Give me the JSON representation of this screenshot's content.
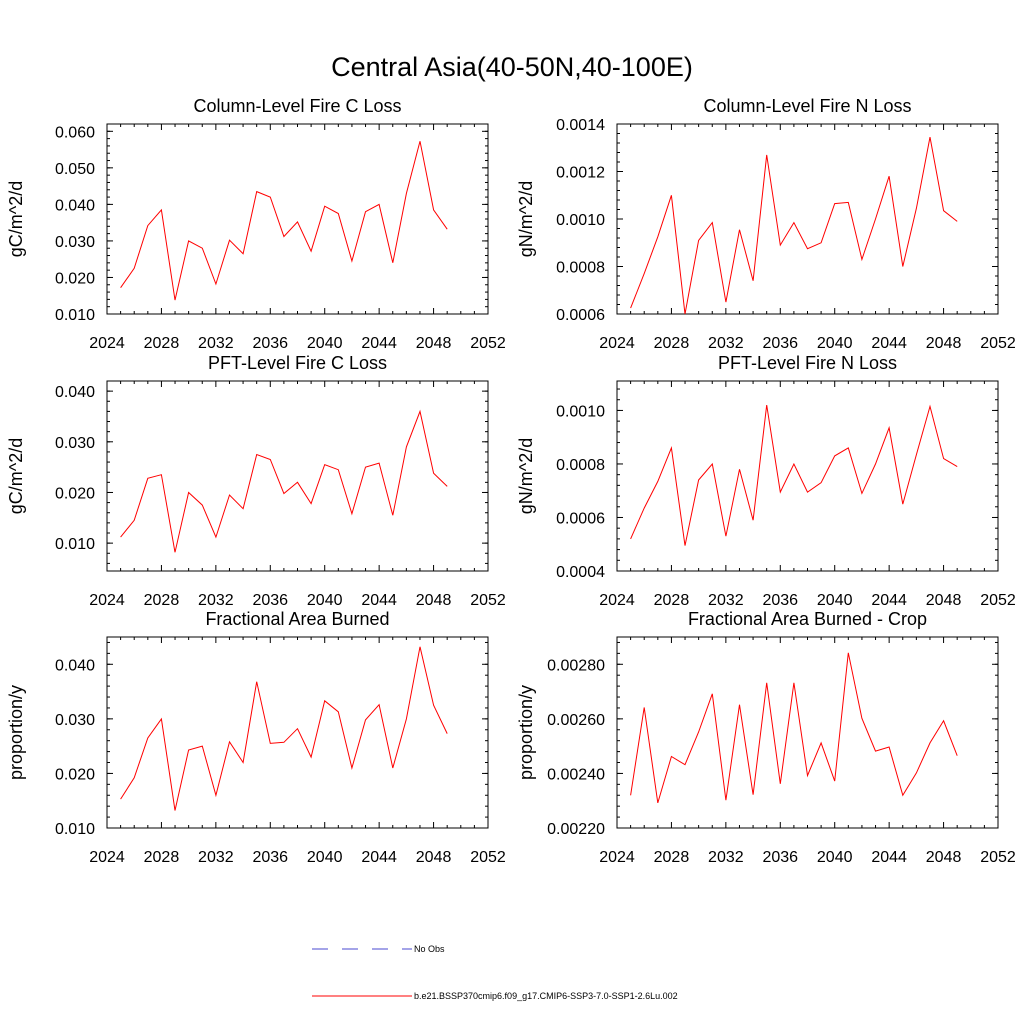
{
  "figure": {
    "title": "Central Asia(40-50N,40-100E)"
  },
  "legend": [
    {
      "label": "No Obs",
      "color": "#4a4ad0",
      "dash": true
    },
    {
      "label": "b.e21.BSSP370cmip6.f09_g17.CMIP6-SSP3-7.0-SSP1-2.6Lu.002",
      "color": "#ff0000",
      "dash": false
    }
  ],
  "chart_data": [
    {
      "type": "line",
      "title": "Column-Level Fire C Loss",
      "ylabel": "gC/m^2/d",
      "xlim": [
        2024,
        2052
      ],
      "ylim": [
        0.01,
        0.062
      ],
      "xticks": [
        2024,
        2028,
        2032,
        2036,
        2040,
        2044,
        2048,
        2052
      ],
      "yticks": [
        0.01,
        0.02,
        0.03,
        0.04,
        0.05,
        0.06
      ],
      "ytick_labels": [
        "0.010",
        "0.020",
        "0.030",
        "0.040",
        "0.050",
        "0.060"
      ],
      "series": [
        {
          "color": "#ff0000",
          "x": [
            2025,
            2026,
            2027,
            2028,
            2029,
            2030,
            2031,
            2032,
            2033,
            2034,
            2035,
            2036,
            2037,
            2038,
            2039,
            2040,
            2041,
            2042,
            2043,
            2044,
            2045,
            2046,
            2047,
            2048,
            2049
          ],
          "y": [
            0.0172,
            0.0225,
            0.0342,
            0.0385,
            0.0138,
            0.03,
            0.028,
            0.0182,
            0.0302,
            0.0265,
            0.0435,
            0.042,
            0.0312,
            0.0352,
            0.0272,
            0.0395,
            0.0375,
            0.0245,
            0.038,
            0.04,
            0.024,
            0.043,
            0.0573,
            0.0385,
            0.0332
          ]
        }
      ]
    },
    {
      "type": "line",
      "title": "Column-Level Fire N Loss",
      "ylabel": "gN/m^2/d",
      "xlim": [
        2024,
        2052
      ],
      "ylim": [
        0.0006,
        0.0014
      ],
      "xticks": [
        2024,
        2028,
        2032,
        2036,
        2040,
        2044,
        2048,
        2052
      ],
      "yticks": [
        0.0006,
        0.0008,
        0.001,
        0.0012,
        0.0014
      ],
      "ytick_labels": [
        "0.0006",
        "0.0008",
        "0.0010",
        "0.0012",
        "0.0014"
      ],
      "series": [
        {
          "color": "#ff0000",
          "x": [
            2025,
            2026,
            2027,
            2028,
            2029,
            2030,
            2031,
            2032,
            2033,
            2034,
            2035,
            2036,
            2037,
            2038,
            2039,
            2040,
            2041,
            2042,
            2043,
            2044,
            2045,
            2046,
            2047,
            2048,
            2049
          ],
          "y": [
            0.000625,
            0.00077,
            0.000925,
            0.0011,
            0.0006,
            0.00091,
            0.000985,
            0.00065,
            0.000955,
            0.00074,
            0.00127,
            0.00089,
            0.000985,
            0.000875,
            0.0009,
            0.001065,
            0.00107,
            0.00083,
            0.001,
            0.00118,
            0.0008,
            0.001045,
            0.001345,
            0.001035,
            0.00099
          ]
        }
      ]
    },
    {
      "type": "line",
      "title": "PFT-Level Fire C Loss",
      "ylabel": "gC/m^2/d",
      "xlim": [
        2024,
        2052
      ],
      "ylim": [
        0.0045,
        0.042
      ],
      "xticks": [
        2024,
        2028,
        2032,
        2036,
        2040,
        2044,
        2048,
        2052
      ],
      "yticks": [
        0.01,
        0.02,
        0.03,
        0.04
      ],
      "ytick_labels": [
        "0.010",
        "0.020",
        "0.030",
        "0.040"
      ],
      "series": [
        {
          "color": "#ff0000",
          "x": [
            2025,
            2026,
            2027,
            2028,
            2029,
            2030,
            2031,
            2032,
            2033,
            2034,
            2035,
            2036,
            2037,
            2038,
            2039,
            2040,
            2041,
            2042,
            2043,
            2044,
            2045,
            2046,
            2047,
            2048,
            2049
          ],
          "y": [
            0.0112,
            0.0145,
            0.0228,
            0.0235,
            0.0082,
            0.02,
            0.0175,
            0.0112,
            0.0195,
            0.0168,
            0.0275,
            0.0265,
            0.0198,
            0.022,
            0.0178,
            0.0255,
            0.0245,
            0.0158,
            0.025,
            0.0258,
            0.0155,
            0.029,
            0.036,
            0.0238,
            0.0212
          ]
        }
      ]
    },
    {
      "type": "line",
      "title": "PFT-Level Fire N Loss",
      "ylabel": "gN/m^2/d",
      "xlim": [
        2024,
        2052
      ],
      "ylim": [
        0.0004,
        0.00111
      ],
      "xticks": [
        2024,
        2028,
        2032,
        2036,
        2040,
        2044,
        2048,
        2052
      ],
      "yticks": [
        0.0004,
        0.0006,
        0.0008,
        0.001
      ],
      "ytick_labels": [
        "0.0004",
        "0.0006",
        "0.0008",
        "0.0010"
      ],
      "series": [
        {
          "color": "#ff0000",
          "x": [
            2025,
            2026,
            2027,
            2028,
            2029,
            2030,
            2031,
            2032,
            2033,
            2034,
            2035,
            2036,
            2037,
            2038,
            2039,
            2040,
            2041,
            2042,
            2043,
            2044,
            2045,
            2046,
            2047,
            2048,
            2049
          ],
          "y": [
            0.00052,
            0.000635,
            0.000735,
            0.00086,
            0.000495,
            0.00074,
            0.0008,
            0.00053,
            0.00078,
            0.00059,
            0.00102,
            0.000695,
            0.0008,
            0.000695,
            0.00073,
            0.00083,
            0.00086,
            0.00069,
            0.0008,
            0.000935,
            0.00065,
            0.000835,
            0.001015,
            0.00082,
            0.00079
          ]
        }
      ]
    },
    {
      "type": "line",
      "title": "Fractional Area Burned",
      "ylabel": "proportion/y",
      "xlim": [
        2024,
        2052
      ],
      "ylim": [
        0.01,
        0.045
      ],
      "xticks": [
        2024,
        2028,
        2032,
        2036,
        2040,
        2044,
        2048,
        2052
      ],
      "yticks": [
        0.01,
        0.02,
        0.03,
        0.04
      ],
      "ytick_labels": [
        "0.010",
        "0.020",
        "0.030",
        "0.040"
      ],
      "series": [
        {
          "color": "#ff0000",
          "x": [
            2025,
            2026,
            2027,
            2028,
            2029,
            2030,
            2031,
            2032,
            2033,
            2034,
            2035,
            2036,
            2037,
            2038,
            2039,
            2040,
            2041,
            2042,
            2043,
            2044,
            2045,
            2046,
            2047,
            2048,
            2049
          ],
          "y": [
            0.0153,
            0.0192,
            0.0265,
            0.03,
            0.0132,
            0.0243,
            0.025,
            0.016,
            0.0258,
            0.022,
            0.0368,
            0.0255,
            0.0257,
            0.0282,
            0.023,
            0.0333,
            0.0313,
            0.021,
            0.0298,
            0.0326,
            0.021,
            0.03,
            0.0432,
            0.0325,
            0.0273
          ]
        }
      ]
    },
    {
      "type": "line",
      "title": "Fractional Area Burned - Crop",
      "ylabel": "proportion/y",
      "xlim": [
        2024,
        2052
      ],
      "ylim": [
        0.0022,
        0.0029
      ],
      "xticks": [
        2024,
        2028,
        2032,
        2036,
        2040,
        2044,
        2048,
        2052
      ],
      "yticks": [
        0.0022,
        0.0024,
        0.0026,
        0.0028
      ],
      "ytick_labels": [
        "0.00220",
        "0.00240",
        "0.00260",
        "0.00280"
      ],
      "series": [
        {
          "color": "#ff0000",
          "x": [
            2025,
            2026,
            2027,
            2028,
            2029,
            2030,
            2031,
            2032,
            2033,
            2034,
            2035,
            2036,
            2037,
            2038,
            2039,
            2040,
            2041,
            2042,
            2043,
            2044,
            2045,
            2046,
            2047,
            2048,
            2049
          ],
          "y": [
            0.00232,
            0.002642,
            0.002292,
            0.002462,
            0.002432,
            0.002552,
            0.002692,
            0.002302,
            0.002652,
            0.002322,
            0.002732,
            0.002362,
            0.002732,
            0.002392,
            0.002512,
            0.002372,
            0.002842,
            0.002602,
            0.002482,
            0.002497,
            0.00232,
            0.002402,
            0.002512,
            0.002593,
            0.002465
          ]
        }
      ]
    }
  ]
}
